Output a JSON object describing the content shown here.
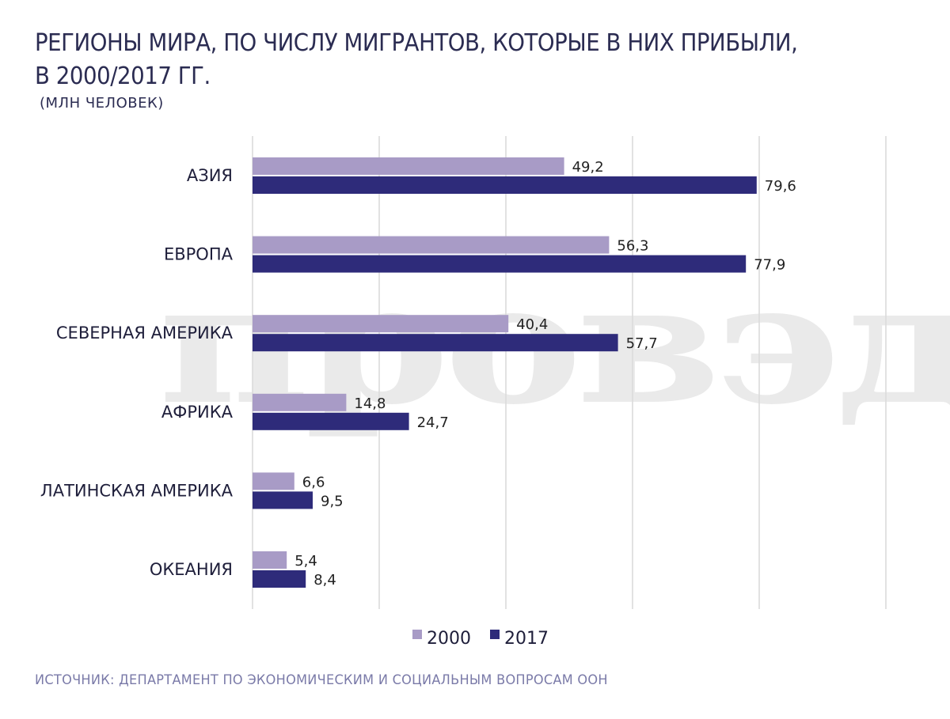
{
  "header": {
    "title": "РЕГИОНЫ МИРА, ПО ЧИСЛУ МИГРАНТОВ, КОТОРЫЕ В НИХ ПРИБЫЛИ, В 2000/2017 ГГ.",
    "subtitle": "(МЛН ЧЕЛОВЕК)"
  },
  "watermark": {
    "text": "провэд"
  },
  "footer": {
    "source": "ИСТОЧНИК: ДЕПАРТАМЕНТ ПО ЭКОНОМИЧЕСКИМ И СОЦИАЛЬНЫМ ВОПРОСАМ ООН"
  },
  "colors": {
    "series_2000": "#a89bc6",
    "series_2017": "#2e2b7a",
    "grid": "#d9d9d9",
    "title": "#2b2c52",
    "source": "#7a7aa8"
  },
  "chart_data": {
    "type": "bar",
    "orientation": "horizontal",
    "categories": [
      "АЗИЯ",
      "ЕВРОПА",
      "СЕВЕРНАЯ АМЕРИКА",
      "АФРИКА",
      "ЛАТИНСКАЯ АМЕРИКА",
      "ОКЕАНИЯ"
    ],
    "series": [
      {
        "name": "2000",
        "values": [
          49.2,
          56.3,
          40.4,
          14.8,
          6.6,
          5.4
        ],
        "labels": [
          "49,2",
          "56,3",
          "40,4",
          "14,8",
          "6,6",
          "5,4"
        ]
      },
      {
        "name": "2017",
        "values": [
          79.6,
          77.9,
          57.7,
          24.7,
          9.5,
          8.4
        ],
        "labels": [
          "79,6",
          "77,9",
          "57,7",
          "24,7",
          "9,5",
          "8,4"
        ]
      }
    ],
    "xlim": [
      0,
      100
    ],
    "grid": true,
    "legend_position": "bottom"
  }
}
